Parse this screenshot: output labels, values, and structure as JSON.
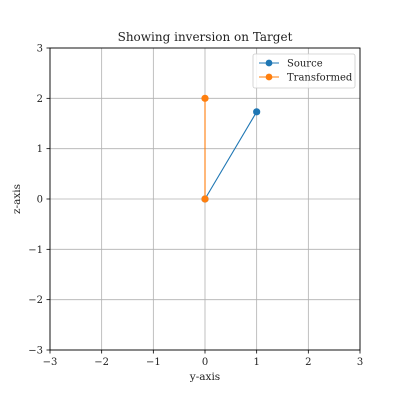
{
  "chart_data": {
    "type": "line",
    "title": "Showing inversion on Target",
    "xlabel": "y-axis",
    "ylabel": "z-axis",
    "xlim": [
      -3,
      3
    ],
    "ylim": [
      -3,
      3
    ],
    "xticks": [
      -3,
      -2,
      -1,
      0,
      1,
      2,
      3
    ],
    "yticks": [
      -3,
      -2,
      -1,
      0,
      1,
      2,
      3
    ],
    "xtick_labels": [
      "−3",
      "−2",
      "−1",
      "0",
      "1",
      "2",
      "3"
    ],
    "ytick_labels": [
      "−3",
      "−2",
      "−1",
      "0",
      "1",
      "2",
      "3"
    ],
    "grid": true,
    "legend_position": "top-right",
    "series": [
      {
        "name": "Source",
        "color": "#1f77b4",
        "marker": "circle",
        "points": [
          [
            0,
            0
          ],
          [
            1,
            1.732
          ]
        ]
      },
      {
        "name": "Transformed",
        "color": "#ff7f0e",
        "marker": "circle",
        "points": [
          [
            0,
            0
          ],
          [
            0,
            2
          ]
        ]
      }
    ]
  }
}
